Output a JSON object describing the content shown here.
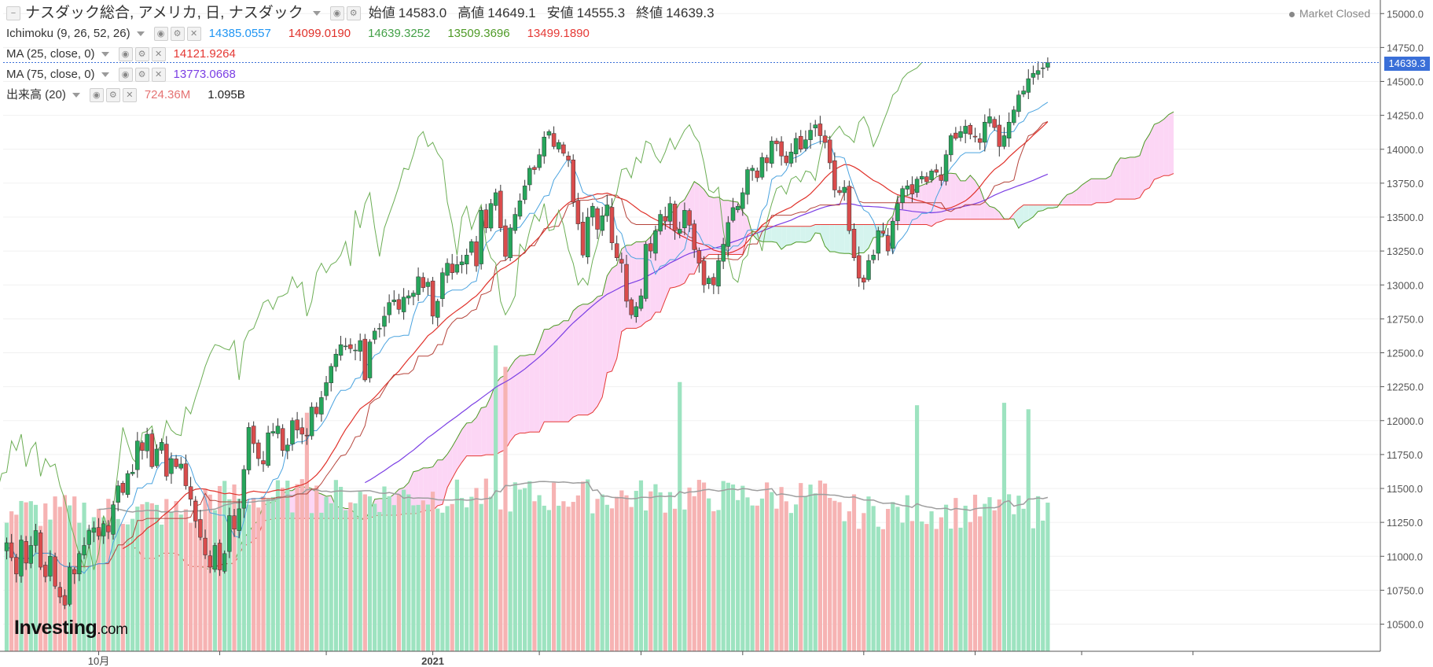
{
  "header": {
    "symbol_title": "ナスダック総合, アメリカ, 日, ナスダック",
    "ohlc": [
      {
        "label": "始値",
        "value": "14583.0"
      },
      {
        "label": "高値",
        "value": "14649.1"
      },
      {
        "label": "安値",
        "value": "14555.3"
      },
      {
        "label": "終値",
        "value": "14639.3"
      }
    ],
    "market_status": "Market Closed"
  },
  "indicators": [
    {
      "name": "Ichimoku (9, 26, 52, 26)",
      "values": [
        {
          "text": "14385.0557",
          "color": "#2196f3"
        },
        {
          "text": "14099.0190",
          "color": "#e0312a"
        },
        {
          "text": "14639.3252",
          "color": "#43a047"
        },
        {
          "text": "13509.3696",
          "color": "#4e9a26"
        },
        {
          "text": "13499.1890",
          "color": "#e53935"
        }
      ]
    },
    {
      "name": "MA (25, close, 0)",
      "values": [
        {
          "text": "14121.9264",
          "color": "#e53935"
        }
      ]
    },
    {
      "name": "MA (75, close, 0)",
      "values": [
        {
          "text": "13773.0668",
          "color": "#7b3fe4"
        }
      ]
    },
    {
      "name": "出来高 (20)",
      "values": [
        {
          "text": "724.36M",
          "color": "#e57373"
        },
        {
          "text": "1.095B",
          "color": "#222222"
        }
      ]
    }
  ],
  "last_price_label": "14639.3",
  "logo": {
    "main": "Investing",
    "suffix": ".com"
  },
  "colors": {
    "up": "#26a65b",
    "down": "#d94c4c",
    "tenkan": "#4aa3df",
    "kijun": "#b5433a",
    "chikou": "#6cae55",
    "spanA": "#4e9a26",
    "spanB": "#e53935",
    "cloud_bull": "#fcd6f5",
    "cloud_bear": "#d5f4ee",
    "ma25": "#e0312a",
    "ma75": "#7b3fe4",
    "vol_up": "#9de3c0",
    "vol_down": "#f6b3b3",
    "vol_ma": "#9e9e9e"
  },
  "chart_data": {
    "type": "candlestick",
    "y_axis": {
      "ticks": [
        10500,
        10750,
        11000,
        11250,
        11500,
        11750,
        12000,
        12250,
        12500,
        12750,
        13000,
        13250,
        13500,
        13750,
        14000,
        14250,
        14500,
        14750,
        15000
      ],
      "tick_labels": [
        "10500.0",
        "10750.0",
        "11000.0",
        "11250.0",
        "11500.0",
        "11750.0",
        "12000.0",
        "12250.0",
        "12500.0",
        "12750.0",
        "13000.0",
        "13250.0",
        "13500.0",
        "13750.0",
        "14000.0",
        "14250.0",
        "14500.0",
        "14750.0",
        "15000.0"
      ],
      "range": [
        10300,
        15100
      ]
    },
    "x_axis": {
      "labels": [
        {
          "text": "10月",
          "index": 19
        },
        {
          "text": "2021",
          "index": 88
        }
      ],
      "tick_indices": [
        19,
        44,
        66,
        88,
        110,
        131,
        152,
        177,
        200,
        222,
        245
      ]
    },
    "last_close": 14639.3,
    "closes": [
      11100,
      10990,
      10870,
      11120,
      10950,
      11080,
      11190,
      10920,
      10850,
      11000,
      10780,
      10700,
      10640,
      10920,
      10870,
      11020,
      11080,
      11190,
      11210,
      11150,
      11240,
      11180,
      11380,
      11520,
      11470,
      11610,
      11620,
      11850,
      11780,
      11900,
      11660,
      11790,
      11840,
      11590,
      11720,
      11660,
      11680,
      11520,
      11420,
      11260,
      11140,
      11010,
      10920,
      11080,
      10900,
      11020,
      11300,
      11200,
      11350,
      11640,
      11950,
      11830,
      11720,
      11680,
      11910,
      11920,
      11960,
      11780,
      11820,
      12000,
      11930,
      11900,
      11890,
      12100,
      12050,
      12170,
      12280,
      12400,
      12490,
      12560,
      12550,
      12530,
      12520,
      12590,
      12300,
      12580,
      12660,
      12680,
      12770,
      12870,
      12890,
      12820,
      12910,
      12920,
      12940,
      13060,
      12980,
      13020,
      12770,
      12880,
      13090,
      13160,
      13090,
      13150,
      13170,
      13220,
      13320,
      13140,
      13550,
      13420,
      13600,
      13680,
      13420,
      13210,
      13420,
      13520,
      13620,
      13730,
      13860,
      13850,
      13960,
      14090,
      14130,
      14020,
      14050,
      13970,
      13920,
      13610,
      13450,
      13220,
      13500,
      13580,
      13410,
      13510,
      13590,
      13310,
      13200,
      13160,
      12880,
      12780,
      12840,
      12920,
      13300,
      13250,
      13400,
      13520,
      13470,
      13600,
      13400,
      13410,
      13550,
      13440,
      13260,
      13160,
      13000,
      13050,
      13000,
      13180,
      13300,
      13460,
      13570,
      13580,
      13680,
      13850,
      13860,
      13790,
      13940,
      13900,
      14060,
      14040,
      13950,
      13900,
      13980,
      14080,
      14000,
      14070,
      14140,
      14180,
      14100,
      14050,
      13900,
      13700,
      13680,
      13720,
      13400,
      13200,
      13050,
      13020,
      13180,
      13220,
      13400,
      13380,
      13250,
      13470,
      13600,
      13710,
      13730,
      13670,
      13780,
      13800,
      13760,
      13840,
      13830,
      13770,
      13960,
      14100,
      14080,
      14130,
      14170,
      14110,
      14090,
      14050,
      14200,
      14240,
      14160,
      14020,
      14100,
      14200,
      14290,
      14400,
      14430,
      14520,
      14560,
      14580,
      14600,
      14639
    ]
  }
}
